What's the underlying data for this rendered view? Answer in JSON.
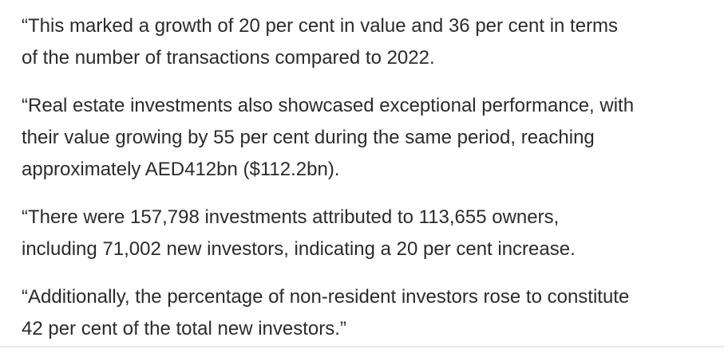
{
  "article": {
    "paragraphs": [
      {
        "lines": [
          "“This marked a growth of 20 per cent in value and 36 per cent in terms",
          "of the number of transactions compared to 2022."
        ]
      },
      {
        "lines": [
          "“Real estate investments also showcased exceptional performance, with",
          "their value growing by 55 per cent during the same period, reaching",
          "approximately AED412bn ($112.2bn)."
        ]
      },
      {
        "lines": [
          "“There were 157,798 investments attributed to 113,655 owners,",
          "including 71,002 new investors, indicating a 20 per cent increase."
        ]
      },
      {
        "lines": [
          "“Additionally, the percentage of non-resident investors rose to constitute",
          "42 per cent of the total new investors.”"
        ]
      }
    ]
  }
}
